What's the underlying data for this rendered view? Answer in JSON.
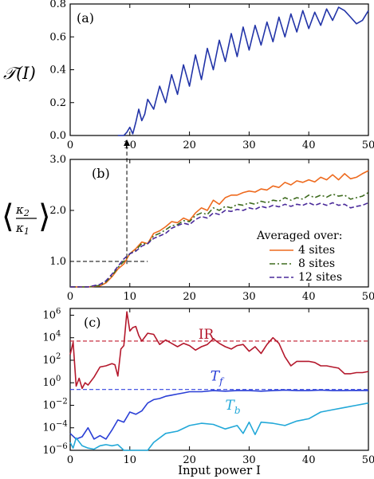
{
  "chart_data": [
    {
      "type": "line",
      "panel_label": "(a)",
      "ylabel": "𝒯(I)",
      "xlim": [
        0,
        50
      ],
      "ylim": [
        0,
        0.8
      ],
      "xticks": [
        "0",
        "10",
        "20",
        "30",
        "40",
        "50"
      ],
      "yticks": [
        "0.0",
        "0.2",
        "0.4",
        "0.6",
        "0.8"
      ],
      "series": [
        {
          "color": "#2234a8",
          "x": [
            8.0,
            9.0,
            9.5,
            10.0,
            10.5,
            11.0,
            11.5,
            12.0,
            12.5,
            13.0,
            14.0,
            15.0,
            16.0,
            17.0,
            18.0,
            19.0,
            20.0,
            21.0,
            22.0,
            23.0,
            24.0,
            25.0,
            26.0,
            27.0,
            28.0,
            29.0,
            30.0,
            31.0,
            32.0,
            33.0,
            34.0,
            35.0,
            36.0,
            37.0,
            38.0,
            39.0,
            40.0,
            41.0,
            42.0,
            43.0,
            44.0,
            45.0,
            46.0,
            47.0,
            48.0,
            49.0,
            50.0
          ],
          "y": [
            0.0,
            0.0,
            0.02,
            0.05,
            0.01,
            0.08,
            0.16,
            0.09,
            0.13,
            0.22,
            0.16,
            0.3,
            0.2,
            0.37,
            0.25,
            0.43,
            0.3,
            0.49,
            0.34,
            0.53,
            0.4,
            0.58,
            0.45,
            0.62,
            0.48,
            0.66,
            0.52,
            0.67,
            0.55,
            0.69,
            0.57,
            0.72,
            0.6,
            0.74,
            0.63,
            0.76,
            0.65,
            0.75,
            0.67,
            0.77,
            0.7,
            0.78,
            0.76,
            0.72,
            0.68,
            0.7,
            0.76
          ]
        }
      ]
    },
    {
      "type": "line",
      "panel_label": "(b)",
      "ylabel": "⟨κ₂/κ₁⟩",
      "xlim": [
        0,
        50
      ],
      "ylim": [
        0.5,
        3.0
      ],
      "xticks": [
        "0",
        "10",
        "20",
        "30",
        "40",
        "50"
      ],
      "yticks": [
        "1.0",
        "2.0",
        "3.0"
      ],
      "legend_title": "Averaged over:",
      "legend_placement": "center-right",
      "annotations": [
        {
          "type": "hline-dashed",
          "y": 1.0,
          "x_from": 0,
          "x_to": 13
        },
        {
          "type": "vline-dashed-arrow",
          "x": 9.5
        }
      ],
      "series": [
        {
          "name": "4 sites",
          "color": "#ee6a1e",
          "style": "solid",
          "x": [
            0,
            3,
            5,
            6,
            7,
            8,
            9,
            10,
            11,
            12,
            13,
            14,
            15,
            16,
            17,
            18,
            19,
            20,
            21,
            22,
            23,
            24,
            25,
            26,
            27,
            28,
            29,
            30,
            31,
            32,
            33,
            34,
            35,
            36,
            37,
            38,
            39,
            40,
            41,
            42,
            43,
            44,
            45,
            46,
            47,
            48,
            49,
            50
          ],
          "y": [
            0.5,
            0.5,
            0.52,
            0.58,
            0.7,
            0.85,
            0.95,
            1.15,
            1.25,
            1.38,
            1.35,
            1.55,
            1.6,
            1.68,
            1.78,
            1.76,
            1.85,
            1.8,
            1.95,
            2.05,
            2.0,
            2.2,
            2.12,
            2.25,
            2.3,
            2.3,
            2.35,
            2.38,
            2.36,
            2.42,
            2.4,
            2.48,
            2.45,
            2.55,
            2.5,
            2.58,
            2.55,
            2.6,
            2.56,
            2.65,
            2.6,
            2.7,
            2.6,
            2.72,
            2.62,
            2.65,
            2.72,
            2.78
          ]
        },
        {
          "name": "8 sites",
          "color": "#3e6b1f",
          "style": "dashdot",
          "x": [
            0,
            3,
            5,
            6,
            7,
            8,
            9,
            10,
            11,
            12,
            13,
            14,
            15,
            16,
            17,
            18,
            19,
            20,
            21,
            22,
            23,
            24,
            25,
            26,
            27,
            28,
            29,
            30,
            31,
            32,
            33,
            34,
            35,
            36,
            37,
            38,
            39,
            40,
            41,
            42,
            43,
            44,
            45,
            46,
            47,
            48,
            49,
            50
          ],
          "y": [
            0.5,
            0.5,
            0.53,
            0.6,
            0.72,
            0.88,
            1.0,
            1.15,
            1.22,
            1.35,
            1.34,
            1.5,
            1.55,
            1.62,
            1.7,
            1.72,
            1.8,
            1.78,
            1.9,
            1.95,
            1.92,
            2.05,
            2.0,
            2.08,
            2.05,
            2.12,
            2.1,
            2.15,
            2.12,
            2.18,
            2.15,
            2.2,
            2.18,
            2.25,
            2.2,
            2.25,
            2.22,
            2.3,
            2.25,
            2.3,
            2.26,
            2.32,
            2.28,
            2.3,
            2.22,
            2.25,
            2.28,
            2.35
          ]
        },
        {
          "name": "12 sites",
          "color": "#4a2a9a",
          "style": "dashed",
          "x": [
            0,
            3,
            5,
            6,
            7,
            8,
            9,
            10,
            11,
            12,
            13,
            14,
            15,
            16,
            17,
            18,
            19,
            20,
            21,
            22,
            23,
            24,
            25,
            26,
            27,
            28,
            29,
            30,
            31,
            32,
            33,
            34,
            35,
            36,
            37,
            38,
            39,
            40,
            41,
            42,
            43,
            44,
            45,
            46,
            47,
            48,
            49,
            50
          ],
          "y": [
            0.5,
            0.5,
            0.55,
            0.62,
            0.75,
            0.9,
            1.05,
            1.15,
            1.2,
            1.3,
            1.35,
            1.45,
            1.5,
            1.55,
            1.65,
            1.7,
            1.75,
            1.72,
            1.82,
            1.88,
            1.85,
            1.95,
            1.92,
            2.0,
            1.98,
            2.02,
            2.0,
            2.05,
            2.02,
            2.08,
            2.05,
            2.1,
            2.07,
            2.12,
            2.08,
            2.12,
            2.1,
            2.15,
            2.1,
            2.14,
            2.1,
            2.15,
            2.1,
            2.12,
            2.05,
            2.08,
            2.1,
            2.15
          ]
        }
      ]
    },
    {
      "type": "line",
      "panel_label": "(c)",
      "xlabel": "Input power I",
      "ylog": true,
      "xlim": [
        0,
        50
      ],
      "ylim": [
        -6,
        6.6
      ],
      "xticks": [
        "0",
        "10",
        "20",
        "30",
        "40",
        "50"
      ],
      "yticks": [
        {
          "exp": -6,
          "label": "10",
          "sup": "−6"
        },
        {
          "exp": -4,
          "label": "10",
          "sup": "−4"
        },
        {
          "exp": -2,
          "label": "10",
          "sup": "−2"
        },
        {
          "exp": 0,
          "label": "10",
          "sup": "0"
        },
        {
          "exp": 2,
          "label": "10",
          "sup": "2"
        },
        {
          "exp": 4,
          "label": "10",
          "sup": "4"
        },
        {
          "exp": 6,
          "label": "10",
          "sup": "6"
        }
      ],
      "hlines": [
        {
          "y_exp": 3.7,
          "color": "#c21a2e"
        },
        {
          "y_exp": -0.6,
          "color": "#3344e0"
        }
      ],
      "series": [
        {
          "name": "IR",
          "label_main": "IR",
          "label_sub": "",
          "label_at": [
            21.5,
            3.9
          ],
          "color": "#b4182c",
          "x": [
            0,
            0.5,
            1,
            1.5,
            2,
            2.5,
            3,
            4,
            5,
            6,
            7,
            7.5,
            8,
            8.5,
            9,
            9.5,
            10,
            10.5,
            11,
            11.5,
            12,
            13,
            14,
            15,
            16,
            17,
            18,
            19,
            20,
            21,
            22,
            23,
            24,
            25,
            26,
            27,
            28,
            29,
            30,
            31,
            32,
            33,
            34,
            35,
            36,
            37,
            38,
            39,
            40,
            41,
            42,
            43,
            44,
            45,
            46,
            47,
            48,
            49,
            50
          ],
          "y_exp": [
            2.5,
            3.6,
            -0.3,
            0.4,
            -0.5,
            0.0,
            -0.2,
            0.5,
            1.4,
            1.5,
            1.7,
            1.6,
            0.6,
            3.0,
            3.3,
            6.3,
            4.6,
            4.9,
            5.0,
            4.2,
            3.7,
            4.4,
            4.3,
            3.4,
            3.8,
            3.5,
            3.2,
            3.5,
            3.3,
            2.9,
            3.2,
            3.4,
            3.9,
            3.5,
            3.2,
            3.0,
            3.3,
            3.4,
            2.8,
            3.2,
            2.6,
            3.4,
            4.0,
            3.5,
            2.3,
            1.5,
            1.9,
            1.9,
            1.9,
            1.8,
            1.5,
            1.5,
            1.4,
            1.3,
            0.8,
            0.8,
            0.9,
            0.9,
            1.0
          ]
        },
        {
          "name": "T_f",
          "label_main": "T",
          "label_sub": "f",
          "label_at": [
            23.5,
            0.2
          ],
          "color": "#2a3fd6",
          "x": [
            0,
            1,
            2,
            3,
            4,
            5,
            6,
            7,
            8,
            9,
            10,
            11,
            12,
            13,
            14,
            15,
            16,
            17,
            18,
            19,
            20,
            22,
            24,
            26,
            28,
            30,
            32,
            34,
            36,
            38,
            40,
            42,
            44,
            46,
            48,
            50
          ],
          "y_exp": [
            -4.5,
            -5.0,
            -4.8,
            -4.0,
            -5.0,
            -4.7,
            -5.0,
            -4.2,
            -3.3,
            -3.5,
            -2.6,
            -2.8,
            -2.5,
            -1.8,
            -1.5,
            -1.4,
            -1.2,
            -1.1,
            -1.0,
            -0.9,
            -0.8,
            -0.8,
            -0.7,
            -0.75,
            -0.7,
            -0.7,
            -0.75,
            -0.7,
            -0.65,
            -0.7,
            -0.7,
            -0.65,
            -0.7,
            -0.7,
            -0.68,
            -0.7
          ]
        },
        {
          "name": "T_b",
          "label_main": "T",
          "label_sub": "b",
          "label_at": [
            26.0,
            -2.4
          ],
          "color": "#22a8d8",
          "x": [
            0,
            0.5,
            1,
            2,
            3,
            4,
            5,
            6,
            7,
            8,
            9,
            10,
            11,
            12,
            13,
            14,
            16,
            18,
            20,
            22,
            24,
            26,
            28,
            29,
            30,
            31,
            32,
            34,
            36,
            38,
            40,
            42,
            44,
            46,
            48,
            50
          ],
          "y_exp": [
            -5.3,
            -5.8,
            -4.9,
            -5.6,
            -5.8,
            -5.9,
            -5.6,
            -5.5,
            -5.6,
            -5.5,
            -6.0,
            -6.0,
            -6.0,
            -6.0,
            -6.0,
            -5.3,
            -4.5,
            -4.3,
            -3.8,
            -3.6,
            -3.7,
            -4.1,
            -3.8,
            -4.5,
            -3.5,
            -4.6,
            -3.5,
            -3.6,
            -3.8,
            -3.4,
            -3.2,
            -2.6,
            -2.4,
            -2.2,
            -2.0,
            -1.8
          ]
        }
      ]
    }
  ]
}
